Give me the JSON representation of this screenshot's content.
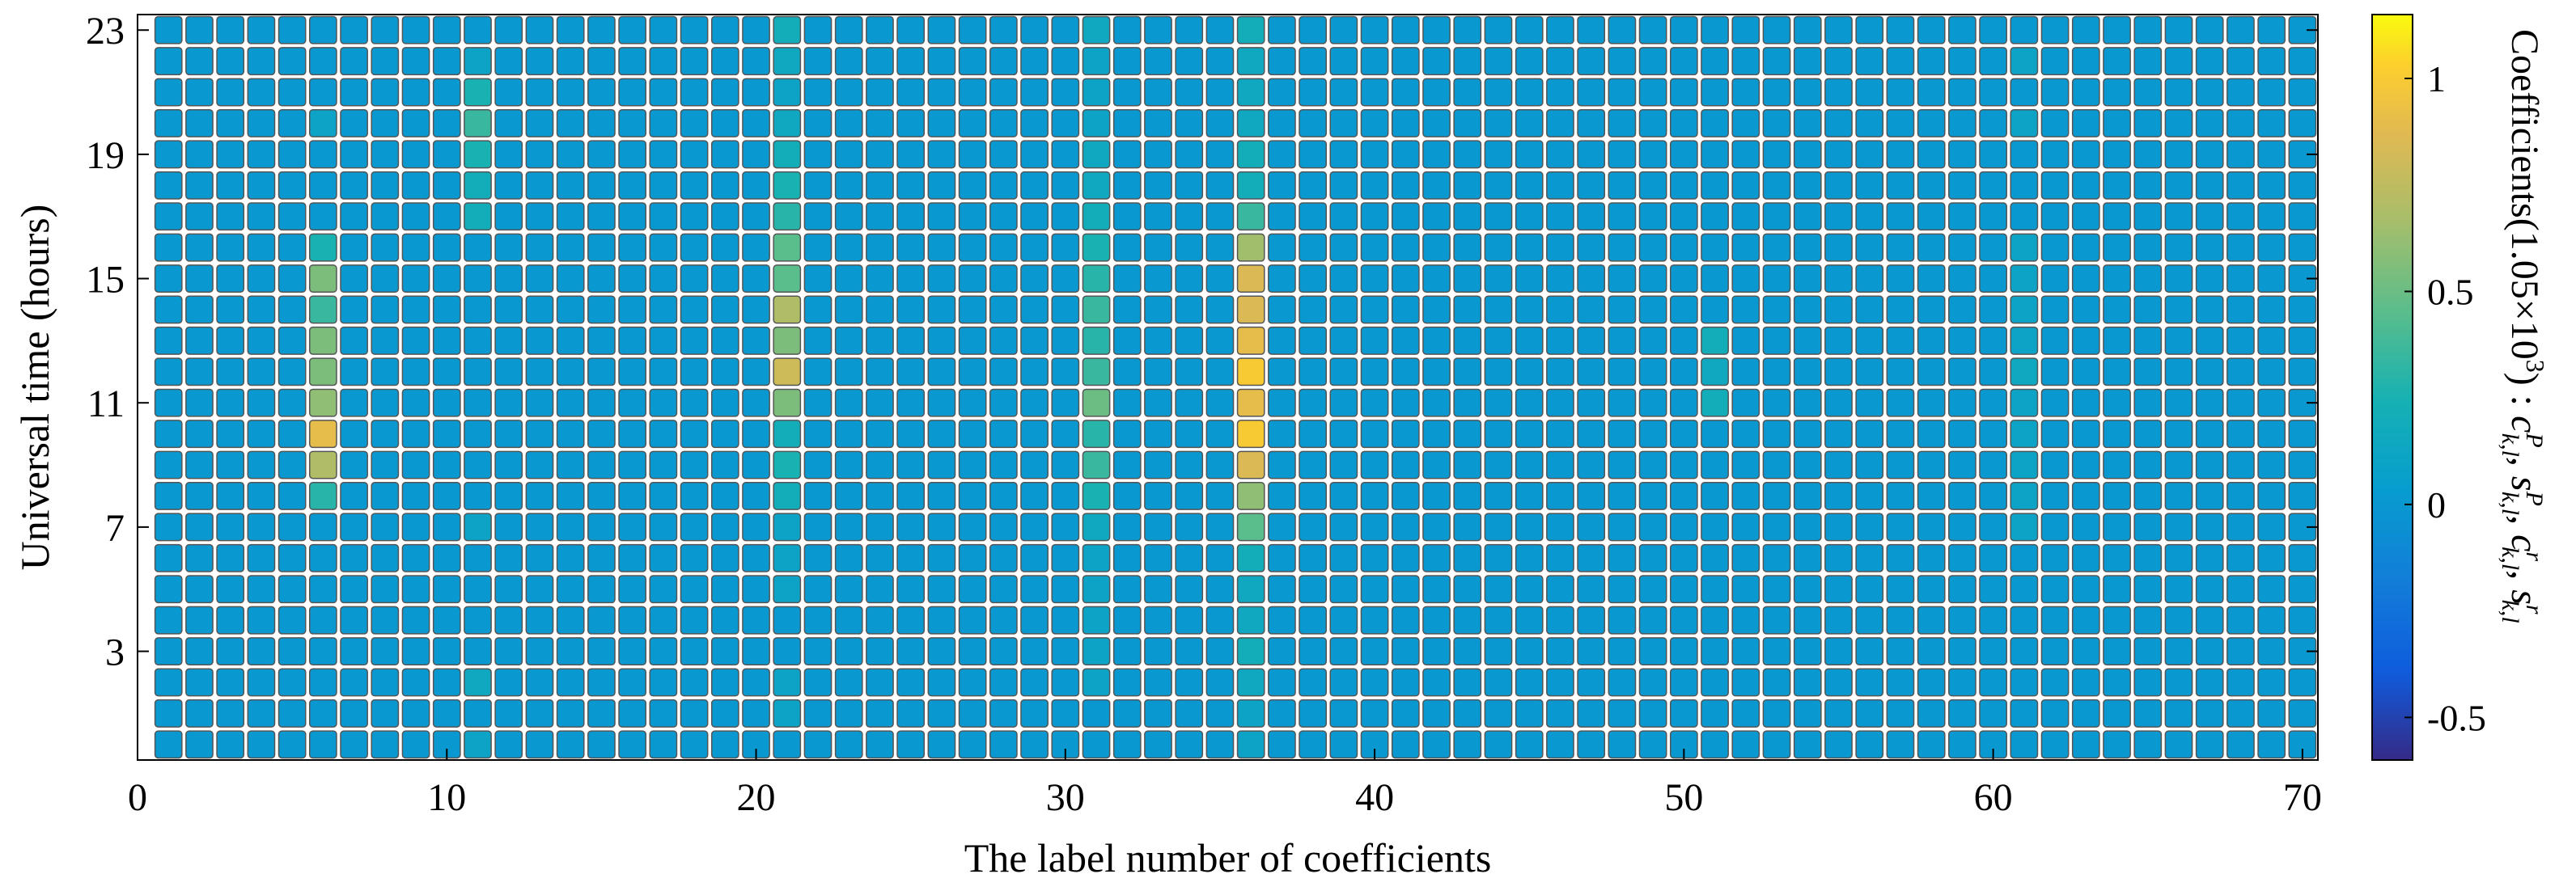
{
  "chart_data": {
    "type": "heatmap",
    "xlabel": "The label number of coefficients",
    "ylabel": "Universal time (hours)",
    "colorbar_label": "Coefficients(1.05×10³) : c",
    "colorbar_label_terms": [
      {
        "base": "c",
        "sup": "P",
        "sub": "k,l"
      },
      {
        "base": "s",
        "sup": "P",
        "sub": "k,l"
      },
      {
        "base": "c",
        "sup": "r",
        "sub": "k,l"
      },
      {
        "base": "s",
        "sup": "r",
        "sub": "k,l"
      }
    ],
    "x_range": [
      0,
      70
    ],
    "x_ticks": [
      0,
      10,
      20,
      30,
      40,
      50,
      60,
      70
    ],
    "y_range": [
      0,
      23
    ],
    "y_ticks": [
      3,
      7,
      11,
      15,
      19,
      23
    ],
    "colorbar_range": [
      -0.6,
      1.15
    ],
    "colorbar_ticks": [
      -0.5,
      0,
      0.5,
      1
    ],
    "colormap": "parula",
    "cell_border_color": "#555555",
    "x_values": [
      1,
      70
    ],
    "y_values": [
      0,
      23
    ],
    "default_value": 0,
    "column_values": [
      {
        "x": 6,
        "values": {
          "8": 0.3,
          "9": 0.7,
          "10": 0.9,
          "11": 0.6,
          "12": 0.55,
          "13": 0.55,
          "14": 0.35,
          "15": 0.55,
          "16": 0.25,
          "20": 0.1
        }
      },
      {
        "x": 11,
        "values": {
          "7": 0.1,
          "17": 0.2,
          "18": 0.2,
          "19": 0.25,
          "20": 0.35,
          "21": 0.25,
          "22": 0.1,
          "0": 0.1,
          "2": 0.15
        }
      },
      {
        "x": 21,
        "values": {
          "5": 0.1,
          "6": 0.1,
          "7": 0.1,
          "8": 0.2,
          "9": 0.25,
          "10": 0.2,
          "11": 0.55,
          "12": 0.8,
          "13": 0.55,
          "14": 0.7,
          "15": 0.45,
          "16": 0.45,
          "17": 0.3,
          "18": 0.25,
          "19": 0.2,
          "20": 0.15,
          "21": 0.1,
          "22": 0.15,
          "23": 0.2,
          "2": 0.1,
          "1": 0.1
        }
      },
      {
        "x": 31,
        "values": {
          "6": 0.1,
          "7": 0.15,
          "8": 0.25,
          "9": 0.35,
          "10": 0.3,
          "11": 0.5,
          "12": 0.35,
          "13": 0.3,
          "14": 0.35,
          "15": 0.3,
          "16": 0.25,
          "17": 0.2,
          "18": 0.15,
          "19": 0.15,
          "20": 0.1,
          "21": 0.1,
          "22": 0.1,
          "23": 0.15,
          "2": 0.1,
          "3": 0.1,
          "4": 0.1,
          "5": 0.1
        }
      },
      {
        "x": 36,
        "values": {
          "0": 0.1,
          "1": 0.1,
          "2": 0.15,
          "3": 0.2,
          "4": 0.15,
          "5": 0.15,
          "6": 0.2,
          "7": 0.45,
          "8": 0.6,
          "9": 0.85,
          "10": 1.0,
          "11": 0.9,
          "12": 1.0,
          "13": 0.9,
          "14": 0.85,
          "15": 0.85,
          "16": 0.65,
          "17": 0.35,
          "18": 0.2,
          "19": 0.2,
          "20": 0.15,
          "21": 0.15,
          "22": 0.15,
          "23": 0.2
        }
      },
      {
        "x": 51,
        "values": {
          "11": 0.2,
          "12": 0.15,
          "13": 0.2
        }
      },
      {
        "x": 61,
        "values": {
          "7": 0.1,
          "8": 0.1,
          "9": 0.1,
          "10": 0.1,
          "11": 0.1,
          "12": 0.15,
          "13": 0.1,
          "14": 0.1,
          "15": 0.1,
          "16": 0.1,
          "20": 0.1,
          "22": 0.1
        }
      }
    ]
  }
}
